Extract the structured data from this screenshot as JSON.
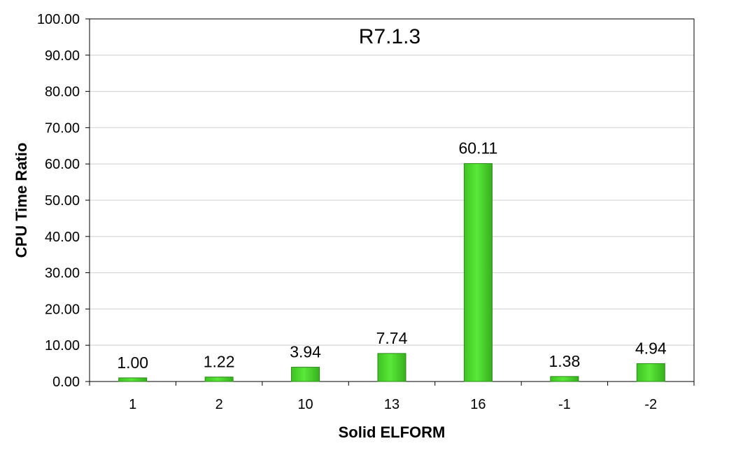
{
  "chart_data": {
    "type": "bar",
    "title": "R7.1.3",
    "xlabel": "Solid ELFORM",
    "ylabel": "CPU Time Ratio",
    "categories": [
      "1",
      "2",
      "10",
      "13",
      "16",
      "-1",
      "-2"
    ],
    "values": [
      1.0,
      1.22,
      3.94,
      7.74,
      60.11,
      1.38,
      4.94
    ],
    "data_labels": [
      "1.00",
      "1.22",
      "3.94",
      "7.74",
      "60.11",
      "1.38",
      "4.94"
    ],
    "ylim": [
      0,
      100
    ],
    "yticks": [
      "0.00",
      "10.00",
      "20.00",
      "30.00",
      "40.00",
      "50.00",
      "60.00",
      "70.00",
      "80.00",
      "90.00",
      "100.00"
    ],
    "grid": true,
    "legend": "none",
    "colors": {
      "bar_fill": "#4ddf2f",
      "bar_stroke": "#2a8a18",
      "grid": "#d9d9d9",
      "axis": "#000000"
    }
  }
}
